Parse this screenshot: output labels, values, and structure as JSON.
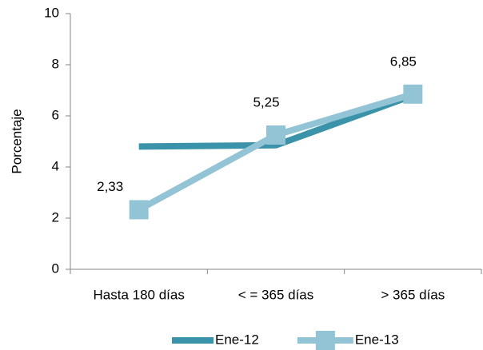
{
  "chart_data": {
    "type": "line",
    "y_label": "Porcentaje",
    "categories": [
      "Hasta 180 días",
      "< = 365 días",
      "> 365 días"
    ],
    "series": [
      {
        "name": "Ene-12",
        "color": "#3a93a8",
        "values": [
          4.8,
          4.85,
          6.8
        ]
      },
      {
        "name": "Ene-13",
        "color": "#93c4d6",
        "values": [
          2.33,
          5.25,
          6.85
        ],
        "value_labels": [
          "2,33",
          "5,25",
          "6,85"
        ],
        "marker": "square"
      }
    ],
    "ylim": [
      0,
      10
    ],
    "yticks": [
      0,
      2,
      4,
      6,
      8,
      10
    ],
    "grid": false,
    "legend": "bottom"
  }
}
